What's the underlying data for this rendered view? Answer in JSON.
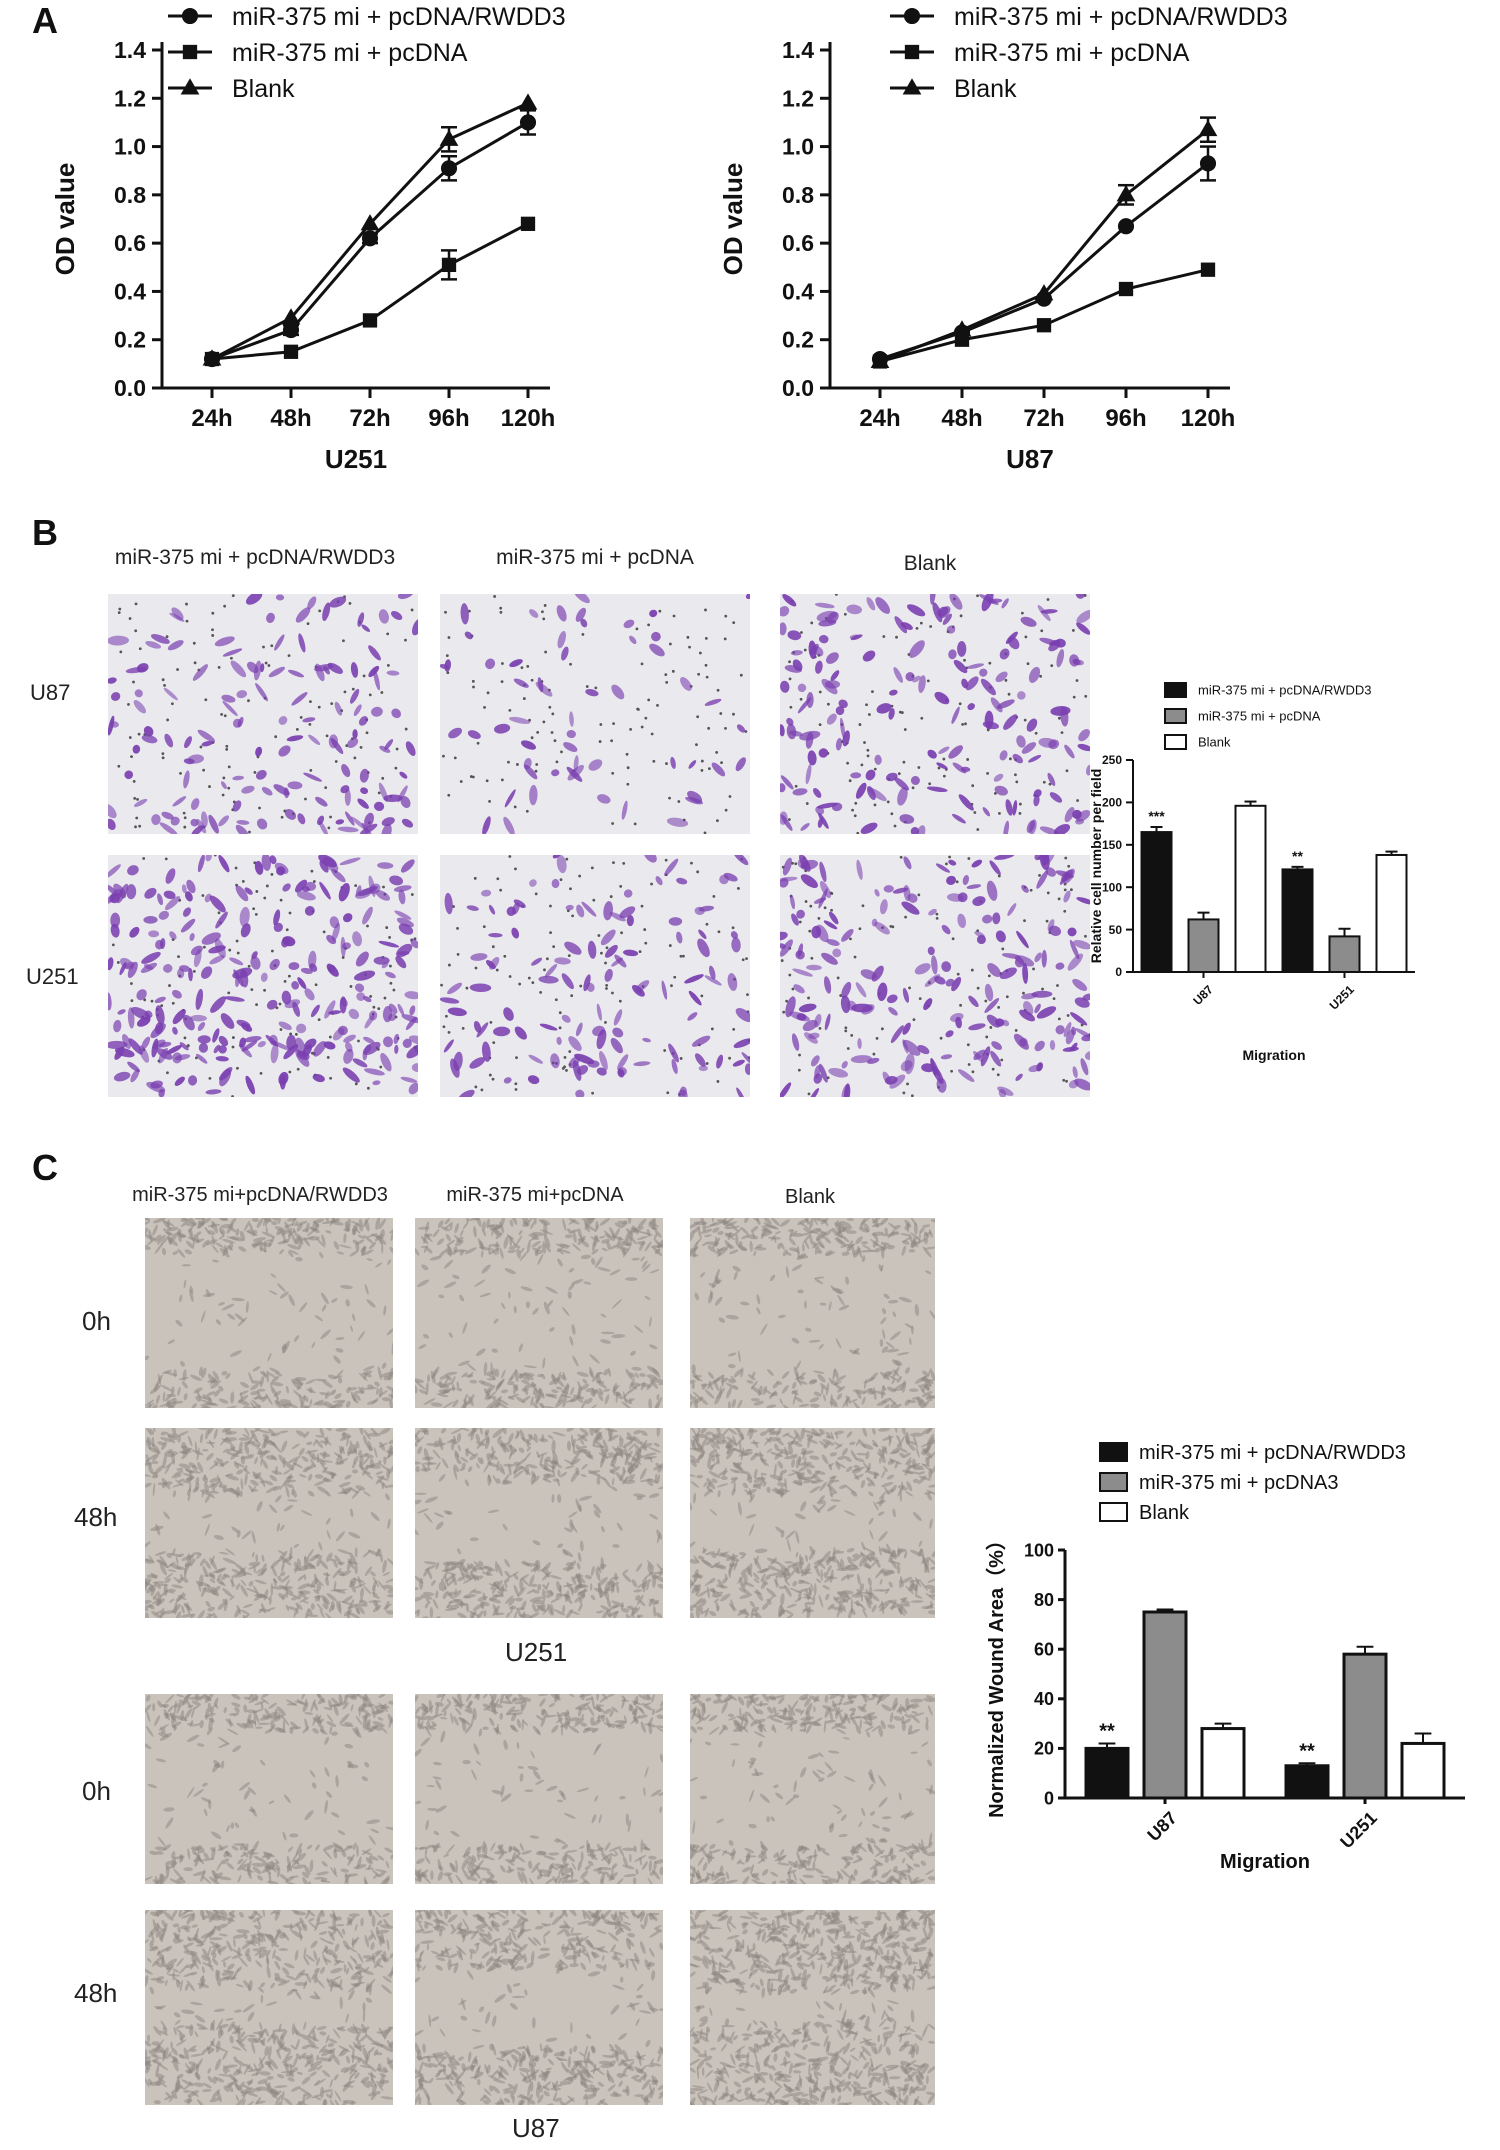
{
  "panels": {
    "a": {
      "letter": "A"
    },
    "b": {
      "letter": "B"
    },
    "c": {
      "letter": "C"
    }
  },
  "colors": {
    "series_black": "#111111",
    "series_gray": "#8c8c8c",
    "series_white": "#ffffff",
    "transwell_stain": "#7a3fb0",
    "wound_field": "#c9c3bc"
  },
  "transwell": {
    "columns": [
      "miR-375 mi + pcDNA/RWDD3",
      "miR-375 mi + pcDNA",
      "Blank"
    ],
    "rows": [
      "U87",
      "U251"
    ]
  },
  "wound": {
    "columns": [
      "miR-375 mi+pcDNA/RWDD3",
      "miR-375 mi+pcDNA",
      "Blank"
    ],
    "row_times": [
      "0h",
      "48h"
    ],
    "cell_lines": [
      "U251",
      "U87"
    ]
  },
  "chart_data": [
    {
      "id": "A-U251",
      "type": "line",
      "x": [
        "24h",
        "48h",
        "72h",
        "96h",
        "120h"
      ],
      "xlabel": "U251",
      "ylabel": "OD value",
      "ylim": [
        0,
        1.4
      ],
      "yticks": [
        "0.0",
        "0.2",
        "0.4",
        "0.6",
        "0.8",
        "1.0",
        "1.2",
        "1.4"
      ],
      "legend": "top-left",
      "series": [
        {
          "name": "miR-375 mi + pcDNA/RWDD3",
          "marker": "circle",
          "values": [
            0.12,
            0.24,
            0.62,
            0.91,
            1.1
          ],
          "errors": [
            0.01,
            0.02,
            0.02,
            0.05,
            0.05
          ]
        },
        {
          "name": "miR-375 mi + pcDNA",
          "marker": "square",
          "values": [
            0.12,
            0.15,
            0.28,
            0.51,
            0.68
          ],
          "errors": [
            0.01,
            0.01,
            0.01,
            0.06,
            0.01
          ]
        },
        {
          "name": "Blank",
          "marker": "triangle",
          "values": [
            0.12,
            0.29,
            0.68,
            1.03,
            1.18
          ],
          "errors": [
            0.01,
            0.01,
            0.01,
            0.05,
            0.01
          ]
        }
      ]
    },
    {
      "id": "A-U87",
      "type": "line",
      "x": [
        "24h",
        "48h",
        "72h",
        "96h",
        "120h"
      ],
      "xlabel": "U87",
      "ylabel": "OD value",
      "ylim": [
        0,
        1.4
      ],
      "yticks": [
        "0.0",
        "0.2",
        "0.4",
        "0.6",
        "0.8",
        "1.0",
        "1.2",
        "1.4"
      ],
      "legend": "top-left",
      "series": [
        {
          "name": "miR-375 mi + pcDNA/RWDD3",
          "marker": "circle",
          "values": [
            0.12,
            0.23,
            0.37,
            0.67,
            0.93
          ],
          "errors": [
            0.01,
            0.01,
            0.01,
            0.01,
            0.07
          ]
        },
        {
          "name": "miR-375 mi + pcDNA",
          "marker": "square",
          "values": [
            0.11,
            0.2,
            0.26,
            0.41,
            0.49
          ],
          "errors": [
            0.01,
            0.01,
            0.01,
            0.01,
            0.01
          ]
        },
        {
          "name": "Blank",
          "marker": "triangle",
          "values": [
            0.11,
            0.24,
            0.39,
            0.8,
            1.07
          ],
          "errors": [
            0.01,
            0.01,
            0.01,
            0.04,
            0.05
          ]
        }
      ]
    },
    {
      "id": "B",
      "type": "bar",
      "categories": [
        "U87",
        "U251"
      ],
      "xlabel": "Migration",
      "ylabel": "Relative cell number per field",
      "ylim": [
        0,
        250
      ],
      "yticks": [
        "0",
        "50",
        "100",
        "150",
        "200",
        "250"
      ],
      "legend": "top-left",
      "series": [
        {
          "name": "miR-375 mi + pcDNA/RWDD3",
          "fill": "black",
          "values": [
            165,
            121
          ],
          "errors": [
            6,
            3
          ]
        },
        {
          "name": "miR-375 mi + pcDNA",
          "fill": "gray",
          "values": [
            62,
            42
          ],
          "errors": [
            8,
            9
          ]
        },
        {
          "name": "Blank",
          "fill": "white",
          "values": [
            196,
            138
          ],
          "errors": [
            5,
            4
          ]
        }
      ],
      "annotations": [
        {
          "category": "U87",
          "series": 0,
          "text": "***"
        },
        {
          "category": "U251",
          "series": 0,
          "text": "**"
        }
      ]
    },
    {
      "id": "C",
      "type": "bar",
      "categories": [
        "U87",
        "U251"
      ],
      "xlabel": "Migration",
      "ylabel": "Normalized Wound Area（%）",
      "ylim": [
        0,
        100
      ],
      "yticks": [
        "0",
        "20",
        "40",
        "60",
        "80",
        "100"
      ],
      "legend": "top-left",
      "series": [
        {
          "name": "miR-375 mi + pcDNA/RWDD3",
          "fill": "black",
          "values": [
            20,
            13
          ],
          "errors": [
            2,
            1
          ]
        },
        {
          "name": "miR-375 mi + pcDNA3",
          "fill": "gray",
          "values": [
            75,
            58
          ],
          "errors": [
            1,
            3
          ]
        },
        {
          "name": "Blank",
          "fill": "white",
          "values": [
            28,
            22
          ],
          "errors": [
            2,
            4
          ]
        }
      ],
      "annotations": [
        {
          "category": "U87",
          "series": 0,
          "text": "**"
        },
        {
          "category": "U251",
          "series": 0,
          "text": "**"
        }
      ]
    }
  ]
}
